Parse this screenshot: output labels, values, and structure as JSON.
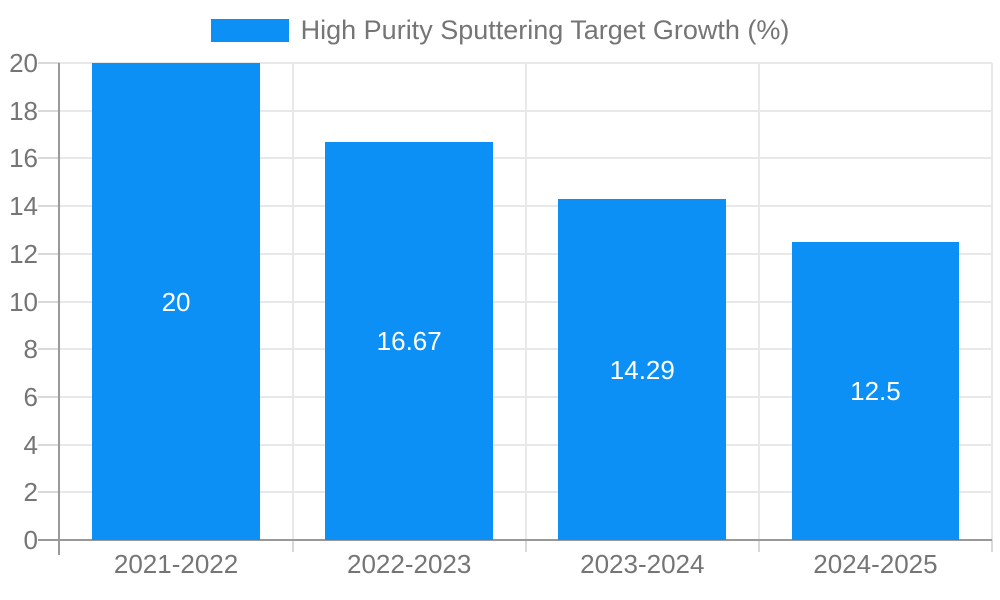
{
  "chart_data": {
    "type": "bar",
    "legend": {
      "label": "High Purity Sputtering Target Growth (%)",
      "position": "top-center"
    },
    "categories": [
      "2021-2022",
      "2022-2023",
      "2023-2024",
      "2024-2025"
    ],
    "values": [
      20,
      16.67,
      14.29,
      12.5
    ],
    "yticks": [
      0,
      2,
      4,
      6,
      8,
      10,
      12,
      14,
      16,
      18,
      20
    ],
    "ylim": [
      0,
      20
    ],
    "xlabel": "",
    "ylabel": "",
    "grid": true,
    "bar_label_position": "inside-center",
    "colors": {
      "bar": "#0D90F5",
      "bar_label": "#FFFFFF",
      "axis": "#999999",
      "grid": "#E8E8E8",
      "tick": "#D9D9D9",
      "text": "#757575",
      "background": "#FFFFFF"
    }
  }
}
